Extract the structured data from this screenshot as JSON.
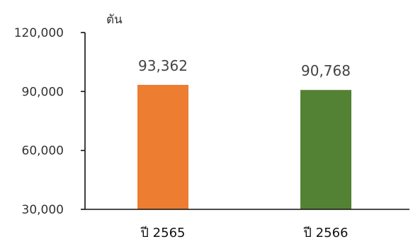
{
  "chart_data": {
    "type": "bar",
    "ylabel": "ตัน",
    "categories": [
      "ปี 2565",
      "ปี 2566"
    ],
    "values": [
      93362,
      90768
    ],
    "value_labels": [
      "93,362",
      "90,768"
    ],
    "colors": [
      "#ED7D31",
      "#548235"
    ],
    "ylim": [
      30000,
      120000
    ],
    "yticks": [
      30000,
      60000,
      90000,
      120000
    ],
    "ytick_labels": [
      "30,000",
      "60,000",
      "90,000",
      "120,000"
    ],
    "grid": false,
    "legend": "none"
  }
}
